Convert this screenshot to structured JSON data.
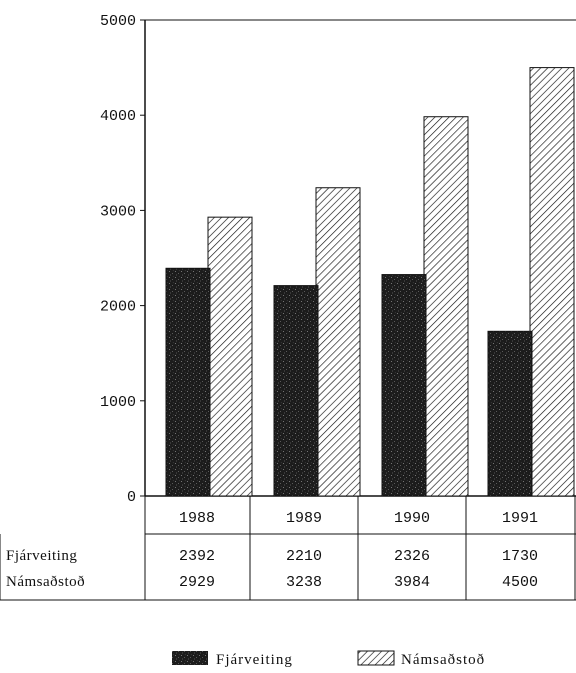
{
  "chart_data": {
    "type": "bar",
    "categories": [
      "1988",
      "1989",
      "1990",
      "1991"
    ],
    "series": [
      {
        "name": "Fjárveiting",
        "values": [
          2392,
          2210,
          2326,
          1730
        ],
        "pattern": "stipple",
        "color": "#1a1a1a"
      },
      {
        "name": "Námsaðstoð",
        "values": [
          2929,
          3238,
          3984,
          4500
        ],
        "pattern": "diagonal-hatch",
        "color": "#ffffff"
      }
    ],
    "yticks": [
      "0",
      "1000",
      "2000",
      "3000",
      "4000",
      "5000"
    ],
    "ylim": [
      0,
      5000
    ],
    "table": {
      "rows": [
        {
          "label": "Fjárveiting",
          "cells": [
            "2392",
            "2210",
            "2326",
            "1730"
          ]
        },
        {
          "label": "Námsaðstoð",
          "cells": [
            "2929",
            "3238",
            "3984",
            "4500"
          ]
        }
      ]
    },
    "legend": {
      "position": "bottom-center",
      "items": [
        "Fjárveiting",
        "Námsaðstoð"
      ]
    },
    "grid": false
  }
}
